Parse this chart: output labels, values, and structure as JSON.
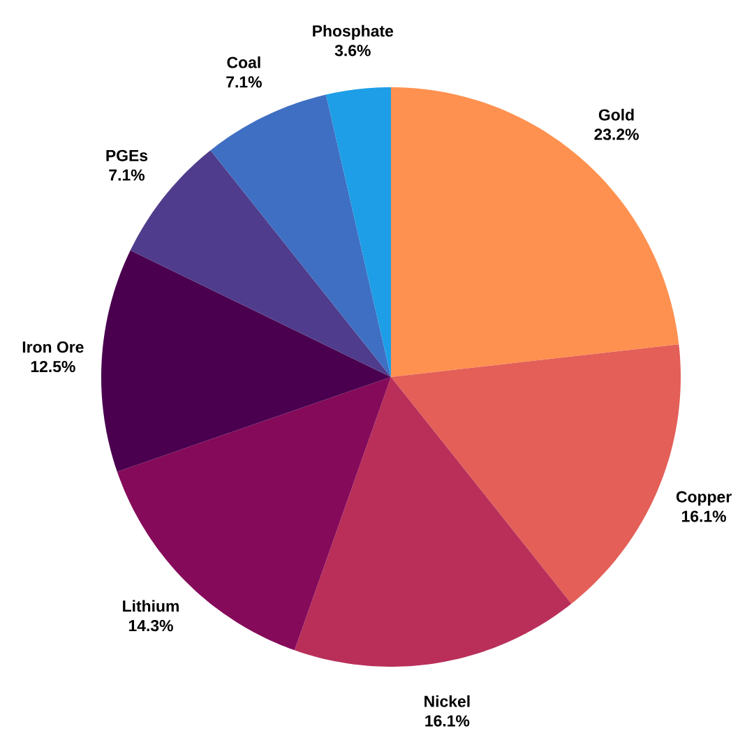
{
  "chart_data": {
    "type": "pie",
    "categories": [
      "Gold",
      "Copper",
      "Nickel",
      "Lithium",
      "Iron Ore",
      "PGEs",
      "Coal",
      "Phosphate"
    ],
    "values": [
      23.2,
      16.1,
      16.1,
      14.3,
      12.5,
      7.1,
      7.1,
      3.6
    ],
    "value_labels": [
      "23.2%",
      "16.1%",
      "16.1%",
      "14.3%",
      "12.5%",
      "7.1%",
      "7.1%",
      "3.6%"
    ],
    "colors": [
      "#ff9150",
      "#e35f58",
      "#b92f5a",
      "#850a5a",
      "#4a004f",
      "#503c8c",
      "#3f6fc2",
      "#1e9ee6"
    ]
  }
}
